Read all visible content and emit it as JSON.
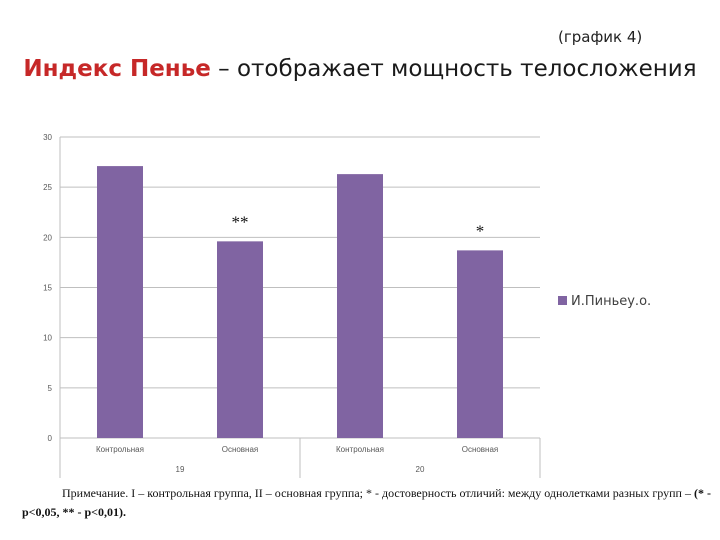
{
  "graph_ref": "(график 4)",
  "title_accent": "Индекс Пенье",
  "title_rest": " – отображает мощность телосложения",
  "chart_data": {
    "type": "bar",
    "groups": [
      {
        "label": "19",
        "categories": [
          "Контрольная",
          "Основная"
        ]
      },
      {
        "label": "20",
        "categories": [
          "Контрольная",
          "Основная"
        ]
      }
    ],
    "categories": [
      "Контрольная",
      "Основная",
      "Контрольная",
      "Основная"
    ],
    "series": [
      {
        "name": "И.Пиньеу.о.",
        "values": [
          27.1,
          19.6,
          26.3,
          18.7
        ],
        "color": "#8064a2"
      }
    ],
    "annotations": [
      "",
      "**",
      "",
      "*"
    ],
    "yticks": [
      "0",
      "5",
      "10",
      "15",
      "20",
      "25",
      "30"
    ],
    "ylim": [
      0,
      30
    ],
    "grid": true,
    "legend": "right"
  },
  "note": {
    "text": "Примечание. I – контрольная группа, II – основная группа; * - достоверность отличий: между однолетками разных групп – ",
    "bold": "(* - p<0,05, ** - p<0,01)."
  }
}
